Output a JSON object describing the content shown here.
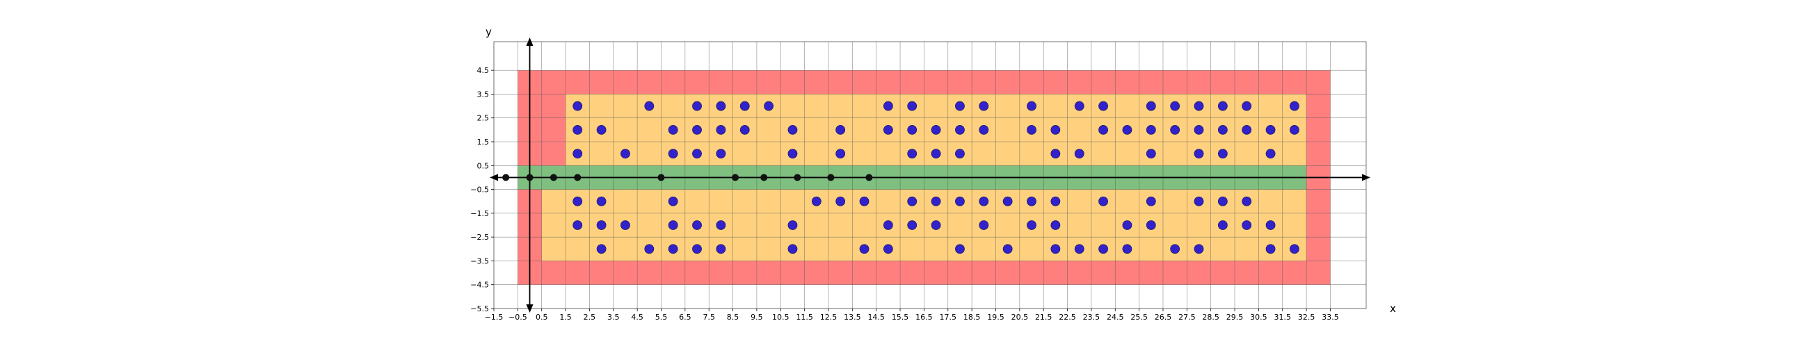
{
  "chart_data": {
    "type": "scatter",
    "title": "",
    "xlabel": "x",
    "ylabel": "y",
    "xlim": [
      -1.5,
      35.0
    ],
    "ylim": [
      -5.5,
      5.7
    ],
    "grid": true,
    "x_ticks": [
      -1.5,
      -0.5,
      0.5,
      1.5,
      2.5,
      3.5,
      4.5,
      5.5,
      6.5,
      7.5,
      8.5,
      9.5,
      10.5,
      11.5,
      12.5,
      13.5,
      14.5,
      15.5,
      16.5,
      17.5,
      18.5,
      19.5,
      20.5,
      21.5,
      22.5,
      23.5,
      24.5,
      25.5,
      26.5,
      27.5,
      28.5,
      29.5,
      30.5,
      31.5,
      32.5,
      33.5
    ],
    "y_ticks": [
      4.5,
      3.5,
      2.5,
      1.5,
      0.5,
      -0.5,
      -1.5,
      -2.5,
      -3.5,
      -4.5,
      -5.5
    ],
    "colors": {
      "outer_region": "#ff7f7f",
      "inner_region": "#ffd17f",
      "axis_band": "#7fbf7f",
      "points": "#3322cc",
      "axis_points": "#111111",
      "grid": "#555555"
    },
    "regions": [
      {
        "name": "outer",
        "x": [
          -0.5,
          33.5
        ],
        "y": [
          -4.5,
          4.5
        ],
        "color": "#ff7f7f"
      },
      {
        "name": "inner-upper",
        "x": [
          1.5,
          32.5
        ],
        "y": [
          0.5,
          3.5
        ],
        "color": "#ffd17f"
      },
      {
        "name": "inner-lower",
        "x": [
          0.5,
          32.5
        ],
        "y": [
          -3.5,
          -0.5
        ],
        "color": "#ffd17f"
      },
      {
        "name": "axis-band",
        "x": [
          -0.5,
          32.5
        ],
        "y": [
          -0.5,
          0.5
        ],
        "color": "#7fbf7f"
      }
    ],
    "axis_points": [
      [
        -1,
        0
      ],
      [
        0,
        0
      ],
      [
        1,
        0
      ],
      [
        2,
        0
      ],
      [
        5.5,
        0
      ],
      [
        8.6,
        0
      ],
      [
        9.8,
        0
      ],
      [
        11.2,
        0
      ],
      [
        12.6,
        0
      ],
      [
        14.2,
        0
      ]
    ],
    "points": [
      [
        2,
        3
      ],
      [
        5,
        3
      ],
      [
        7,
        3
      ],
      [
        8,
        3
      ],
      [
        9,
        3
      ],
      [
        10,
        3
      ],
      [
        15,
        3
      ],
      [
        16,
        3
      ],
      [
        18,
        3
      ],
      [
        19,
        3
      ],
      [
        21,
        3
      ],
      [
        23,
        3
      ],
      [
        24,
        3
      ],
      [
        26,
        3
      ],
      [
        27,
        3
      ],
      [
        28,
        3
      ],
      [
        29,
        3
      ],
      [
        30,
        3
      ],
      [
        32,
        3
      ],
      [
        2,
        2
      ],
      [
        3,
        2
      ],
      [
        6,
        2
      ],
      [
        7,
        2
      ],
      [
        8,
        2
      ],
      [
        9,
        2
      ],
      [
        11,
        2
      ],
      [
        13,
        2
      ],
      [
        15,
        2
      ],
      [
        16,
        2
      ],
      [
        17,
        2
      ],
      [
        18,
        2
      ],
      [
        19,
        2
      ],
      [
        21,
        2
      ],
      [
        22,
        2
      ],
      [
        24,
        2
      ],
      [
        25,
        2
      ],
      [
        26,
        2
      ],
      [
        27,
        2
      ],
      [
        28,
        2
      ],
      [
        29,
        2
      ],
      [
        30,
        2
      ],
      [
        31,
        2
      ],
      [
        32,
        2
      ],
      [
        2,
        1
      ],
      [
        4,
        1
      ],
      [
        6,
        1
      ],
      [
        7,
        1
      ],
      [
        8,
        1
      ],
      [
        11,
        1
      ],
      [
        13,
        1
      ],
      [
        16,
        1
      ],
      [
        17,
        1
      ],
      [
        18,
        1
      ],
      [
        22,
        1
      ],
      [
        23,
        1
      ],
      [
        26,
        1
      ],
      [
        28,
        1
      ],
      [
        29,
        1
      ],
      [
        31,
        1
      ],
      [
        2,
        -1
      ],
      [
        3,
        -1
      ],
      [
        6,
        -1
      ],
      [
        12,
        -1
      ],
      [
        13,
        -1
      ],
      [
        14,
        -1
      ],
      [
        16,
        -1
      ],
      [
        17,
        -1
      ],
      [
        18,
        -1
      ],
      [
        19,
        -1
      ],
      [
        20,
        -1
      ],
      [
        21,
        -1
      ],
      [
        22,
        -1
      ],
      [
        24,
        -1
      ],
      [
        26,
        -1
      ],
      [
        28,
        -1
      ],
      [
        29,
        -1
      ],
      [
        30,
        -1
      ],
      [
        2,
        -2
      ],
      [
        3,
        -2
      ],
      [
        4,
        -2
      ],
      [
        6,
        -2
      ],
      [
        7,
        -2
      ],
      [
        8,
        -2
      ],
      [
        11,
        -2
      ],
      [
        15,
        -2
      ],
      [
        16,
        -2
      ],
      [
        17,
        -2
      ],
      [
        19,
        -2
      ],
      [
        21,
        -2
      ],
      [
        22,
        -2
      ],
      [
        25,
        -2
      ],
      [
        26,
        -2
      ],
      [
        29,
        -2
      ],
      [
        30,
        -2
      ],
      [
        31,
        -2
      ],
      [
        3,
        -3
      ],
      [
        5,
        -3
      ],
      [
        6,
        -3
      ],
      [
        7,
        -3
      ],
      [
        8,
        -3
      ],
      [
        11,
        -3
      ],
      [
        14,
        -3
      ],
      [
        15,
        -3
      ],
      [
        18,
        -3
      ],
      [
        20,
        -3
      ],
      [
        22,
        -3
      ],
      [
        23,
        -3
      ],
      [
        24,
        -3
      ],
      [
        25,
        -3
      ],
      [
        27,
        -3
      ],
      [
        28,
        -3
      ],
      [
        31,
        -3
      ],
      [
        32,
        -3
      ]
    ]
  }
}
